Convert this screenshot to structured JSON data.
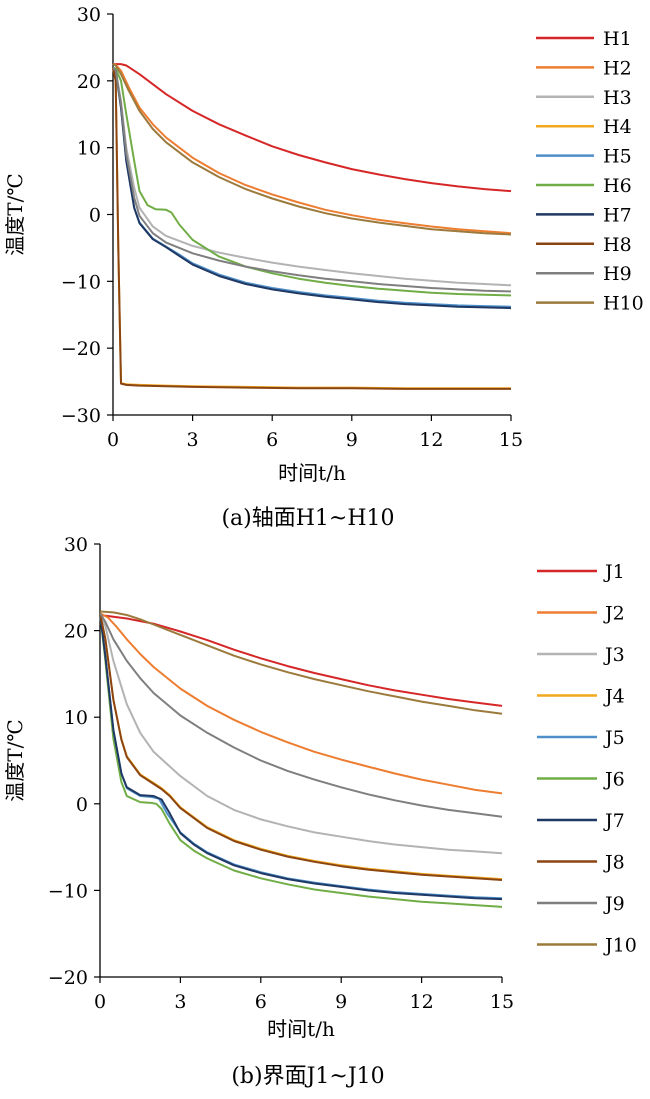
{
  "chart_data": [
    {
      "type": "line",
      "title": "(a)轴面H1~H10",
      "xlabel": "时间t/h",
      "ylabel": "温度T/℃",
      "xlim": [
        0,
        15
      ],
      "ylim": [
        -30,
        30
      ],
      "xticks": [
        0,
        3,
        6,
        9,
        12,
        15
      ],
      "yticks": [
        30,
        20,
        10,
        0,
        -10,
        -20,
        -30
      ],
      "ytick_labels": [
        "30",
        "20",
        "10",
        "0",
        "−10",
        "−20",
        "−30"
      ],
      "grid": false,
      "legend_position": "right",
      "series": [
        {
          "name": "H1",
          "color": "#d62728",
          "x": [
            0,
            0.3,
            0.5,
            1,
            1.5,
            2,
            3,
            4,
            5,
            6,
            7,
            8,
            9,
            10,
            11,
            12,
            13,
            14,
            15
          ],
          "y": [
            22.5,
            22.5,
            22.3,
            21,
            19.5,
            18,
            15.5,
            13.5,
            11.8,
            10.2,
            8.9,
            7.8,
            6.8,
            6.0,
            5.3,
            4.7,
            4.2,
            3.8,
            3.5
          ]
        },
        {
          "name": "H2",
          "color": "#ed7d31",
          "x": [
            0,
            0.1,
            0.3,
            0.6,
            1,
            1.5,
            2,
            3,
            4,
            5,
            6,
            7,
            8,
            9,
            10,
            11,
            12,
            13,
            14,
            15
          ],
          "y": [
            22.5,
            22.4,
            21.5,
            19,
            16,
            13.5,
            11.5,
            8.5,
            6.2,
            4.4,
            3.0,
            1.8,
            0.7,
            -0.1,
            -0.8,
            -1.3,
            -1.8,
            -2.2,
            -2.5,
            -2.8
          ]
        },
        {
          "name": "H3",
          "color": "#b3b3b3",
          "x": [
            0,
            0.1,
            0.3,
            0.5,
            0.8,
            1,
            1.5,
            2,
            3,
            4,
            5,
            6,
            7,
            8,
            9,
            10,
            11,
            12,
            13,
            14,
            15
          ],
          "y": [
            22,
            21.5,
            17,
            10,
            4,
            1,
            -1.8,
            -3.2,
            -4.7,
            -5.7,
            -6.5,
            -7.2,
            -7.8,
            -8.3,
            -8.8,
            -9.2,
            -9.6,
            -9.9,
            -10.2,
            -10.4,
            -10.6
          ]
        },
        {
          "name": "H4",
          "color": "#f2a81d",
          "x": [
            0,
            0.1,
            0.2,
            0.3,
            0.5,
            1,
            2,
            3,
            5,
            7,
            9,
            11,
            13,
            15
          ],
          "y": [
            22,
            20,
            -5,
            -25.2,
            -25.4,
            -25.5,
            -25.6,
            -25.7,
            -25.8,
            -25.9,
            -25.9,
            -26.0,
            -26.0,
            -26.0
          ]
        },
        {
          "name": "H5",
          "color": "#4f8fc9",
          "x": [
            0,
            0.1,
            0.3,
            0.5,
            0.8,
            1,
            1.5,
            2,
            2.5,
            3,
            4,
            5,
            6,
            7,
            8,
            9,
            10,
            11,
            12,
            13,
            14,
            15
          ],
          "y": [
            22,
            21.5,
            16,
            8,
            1,
            -1.2,
            -3.6,
            -4.8,
            -6.0,
            -7.3,
            -9.0,
            -10.2,
            -11.0,
            -11.6,
            -12.1,
            -12.5,
            -12.9,
            -13.2,
            -13.4,
            -13.6,
            -13.7,
            -13.8
          ]
        },
        {
          "name": "H6",
          "color": "#70ad47",
          "x": [
            0,
            0.1,
            0.3,
            0.5,
            0.8,
            1,
            1.3,
            1.6,
            2,
            2.2,
            2.5,
            3,
            4,
            5,
            6,
            7,
            8,
            9,
            10,
            11,
            12,
            13,
            14,
            15
          ],
          "y": [
            22,
            21.8,
            20,
            15,
            8,
            3.5,
            1.4,
            0.8,
            0.7,
            0.3,
            -1.5,
            -3.8,
            -6.3,
            -7.8,
            -8.8,
            -9.6,
            -10.2,
            -10.7,
            -11.1,
            -11.4,
            -11.7,
            -11.9,
            -12.0,
            -12.1
          ]
        },
        {
          "name": "H7",
          "color": "#1f3864",
          "x": [
            0,
            0.1,
            0.3,
            0.5,
            0.8,
            1,
            1.5,
            2,
            2.5,
            3,
            4,
            5,
            6,
            7,
            8,
            9,
            10,
            11,
            12,
            13,
            14,
            15
          ],
          "y": [
            22,
            21.5,
            16,
            8,
            1,
            -1.3,
            -3.7,
            -4.9,
            -6.2,
            -7.5,
            -9.2,
            -10.4,
            -11.2,
            -11.8,
            -12.3,
            -12.7,
            -13.1,
            -13.4,
            -13.6,
            -13.8,
            -13.9,
            -14.0
          ]
        },
        {
          "name": "H8",
          "color": "#8b4513",
          "x": [
            0,
            0.1,
            0.2,
            0.3,
            0.5,
            1,
            2,
            3,
            5,
            7,
            9,
            11,
            13,
            15
          ],
          "y": [
            22,
            20,
            -5,
            -25.3,
            -25.5,
            -25.6,
            -25.7,
            -25.8,
            -25.9,
            -26.0,
            -26.0,
            -26.1,
            -26.1,
            -26.1
          ]
        },
        {
          "name": "H9",
          "color": "#7f7f7f",
          "x": [
            0,
            0.1,
            0.3,
            0.5,
            0.8,
            1,
            1.5,
            2,
            3,
            4,
            5,
            6,
            7,
            8,
            9,
            10,
            11,
            12,
            13,
            14,
            15
          ],
          "y": [
            22,
            21.5,
            16.5,
            9,
            2.5,
            -0.2,
            -2.8,
            -4.2,
            -5.8,
            -6.9,
            -7.8,
            -8.5,
            -9.1,
            -9.6,
            -10.0,
            -10.4,
            -10.7,
            -11.0,
            -11.2,
            -11.4,
            -11.5
          ]
        },
        {
          "name": "H10",
          "color": "#9c7a3c",
          "x": [
            0,
            0.1,
            0.3,
            0.6,
            1,
            1.5,
            2,
            3,
            4,
            5,
            6,
            7,
            8,
            9,
            10,
            11,
            12,
            13,
            14,
            15
          ],
          "y": [
            22.5,
            22.3,
            21,
            18.5,
            15.5,
            12.8,
            10.8,
            7.8,
            5.6,
            3.8,
            2.4,
            1.2,
            0.2,
            -0.6,
            -1.2,
            -1.7,
            -2.2,
            -2.5,
            -2.8,
            -3.0
          ]
        }
      ]
    },
    {
      "type": "line",
      "title": "(b)界面J1~J10",
      "xlabel": "时间t/h",
      "ylabel": "温度T/℃",
      "xlim": [
        0,
        15
      ],
      "ylim": [
        -20,
        30
      ],
      "xticks": [
        0,
        3,
        6,
        9,
        12,
        15
      ],
      "yticks": [
        30,
        20,
        10,
        0,
        -10,
        -20
      ],
      "ytick_labels": [
        "30",
        "20",
        "10",
        "0",
        "−10",
        "−20"
      ],
      "grid": false,
      "legend_position": "right",
      "series": [
        {
          "name": "J1",
          "color": "#d62728",
          "x": [
            0,
            0.5,
            1,
            1.5,
            2,
            3,
            4,
            5,
            6,
            7,
            8,
            9,
            10,
            11,
            12,
            13,
            14,
            15
          ],
          "y": [
            21.8,
            21.6,
            21.4,
            21.1,
            20.8,
            19.9,
            18.9,
            17.8,
            16.8,
            15.9,
            15.1,
            14.4,
            13.7,
            13.1,
            12.6,
            12.1,
            11.7,
            11.3
          ]
        },
        {
          "name": "J2",
          "color": "#ed7d31",
          "x": [
            0,
            0.3,
            0.6,
            1,
            1.5,
            2,
            3,
            4,
            5,
            6,
            7,
            8,
            9,
            10,
            11,
            12,
            13,
            14,
            15
          ],
          "y": [
            22,
            21.5,
            20.5,
            19,
            17.3,
            15.8,
            13.3,
            11.3,
            9.7,
            8.3,
            7.1,
            6.0,
            5.1,
            4.3,
            3.5,
            2.8,
            2.2,
            1.6,
            1.2
          ]
        },
        {
          "name": "J3",
          "color": "#b3b3b3",
          "x": [
            0,
            0.2,
            0.5,
            1,
            1.5,
            2,
            2.5,
            3,
            4,
            5,
            6,
            7,
            8,
            9,
            10,
            11,
            12,
            13,
            14,
            15
          ],
          "y": [
            22,
            20.5,
            16.5,
            11.5,
            8.2,
            6.0,
            4.6,
            3.2,
            0.9,
            -0.7,
            -1.8,
            -2.6,
            -3.3,
            -3.8,
            -4.3,
            -4.7,
            -5.0,
            -5.3,
            -5.5,
            -5.7
          ]
        },
        {
          "name": "J4",
          "color": "#f2a81d",
          "x": [
            0,
            0.2,
            0.5,
            0.8,
            1,
            1.5,
            2,
            2.3,
            2.6,
            3,
            4,
            5,
            6,
            7,
            8,
            9,
            10,
            11,
            12,
            13,
            14,
            15
          ],
          "y": [
            22,
            19,
            12,
            7.5,
            5.5,
            3.4,
            2.4,
            1.8,
            1.0,
            -0.4,
            -2.7,
            -4.2,
            -5.2,
            -6.0,
            -6.6,
            -7.1,
            -7.5,
            -7.8,
            -8.1,
            -8.3,
            -8.5,
            -8.7
          ]
        },
        {
          "name": "J5",
          "color": "#4f8fc9",
          "x": [
            0,
            0.2,
            0.5,
            0.8,
            1,
            1.5,
            1.9,
            2.2,
            2.5,
            3,
            3.5,
            4,
            5,
            6,
            7,
            8,
            9,
            10,
            11,
            12,
            13,
            14,
            15
          ],
          "y": [
            22,
            17,
            8.5,
            3.5,
            1.8,
            0.9,
            0.8,
            0.6,
            -1.1,
            -3.3,
            -4.6,
            -5.6,
            -7.0,
            -7.9,
            -8.6,
            -9.1,
            -9.5,
            -9.9,
            -10.2,
            -10.4,
            -10.6,
            -10.8,
            -10.9
          ]
        },
        {
          "name": "J6",
          "color": "#70ad47",
          "x": [
            0,
            0.2,
            0.5,
            0.8,
            1,
            1.5,
            1.9,
            2.1,
            2.3,
            2.6,
            3,
            3.5,
            4,
            5,
            6,
            7,
            8,
            9,
            10,
            11,
            12,
            13,
            14,
            15
          ],
          "y": [
            22,
            16.5,
            7.5,
            2.5,
            0.9,
            0.2,
            0.1,
            0,
            -0.6,
            -2.3,
            -4.2,
            -5.4,
            -6.3,
            -7.7,
            -8.6,
            -9.3,
            -9.9,
            -10.3,
            -10.7,
            -11.0,
            -11.3,
            -11.5,
            -11.7,
            -11.9
          ]
        },
        {
          "name": "J7",
          "color": "#1f3864",
          "x": [
            0,
            0.2,
            0.5,
            0.8,
            1,
            1.5,
            2,
            2.3,
            2.6,
            3,
            3.5,
            4,
            5,
            6,
            7,
            8,
            9,
            10,
            11,
            12,
            13,
            14,
            15
          ],
          "y": [
            22,
            17,
            8.5,
            3.5,
            1.9,
            1.0,
            0.9,
            0.5,
            -1.1,
            -3.4,
            -4.7,
            -5.7,
            -7.1,
            -8.0,
            -8.7,
            -9.2,
            -9.6,
            -10.0,
            -10.3,
            -10.5,
            -10.7,
            -10.9,
            -11.0
          ]
        },
        {
          "name": "J8",
          "color": "#8b4513",
          "x": [
            0,
            0.2,
            0.5,
            0.8,
            1,
            1.5,
            2,
            2.3,
            2.6,
            3,
            4,
            5,
            6,
            7,
            8,
            9,
            10,
            11,
            12,
            13,
            14,
            15
          ],
          "y": [
            22,
            19,
            12,
            7.4,
            5.4,
            3.3,
            2.3,
            1.7,
            0.9,
            -0.5,
            -2.8,
            -4.3,
            -5.3,
            -6.1,
            -6.7,
            -7.2,
            -7.6,
            -7.9,
            -8.2,
            -8.4,
            -8.6,
            -8.8
          ]
        },
        {
          "name": "J9",
          "color": "#7f7f7f",
          "x": [
            0,
            0.2,
            0.5,
            1,
            1.5,
            2,
            3,
            4,
            5,
            6,
            7,
            8,
            9,
            10,
            11,
            12,
            13,
            14,
            15
          ],
          "y": [
            22,
            21,
            19,
            16.5,
            14.5,
            12.8,
            10.2,
            8.2,
            6.5,
            5.0,
            3.8,
            2.8,
            1.9,
            1.1,
            0.4,
            -0.2,
            -0.7,
            -1.1,
            -1.5
          ]
        },
        {
          "name": "J10",
          "color": "#9c7a3c",
          "x": [
            0,
            0.5,
            1,
            1.5,
            2,
            3,
            4,
            5,
            6,
            7,
            8,
            9,
            10,
            11,
            12,
            13,
            14,
            15
          ],
          "y": [
            22.2,
            22.1,
            21.8,
            21.3,
            20.7,
            19.5,
            18.3,
            17.1,
            16.1,
            15.2,
            14.4,
            13.7,
            13.0,
            12.4,
            11.8,
            11.3,
            10.8,
            10.4
          ]
        }
      ]
    }
  ]
}
